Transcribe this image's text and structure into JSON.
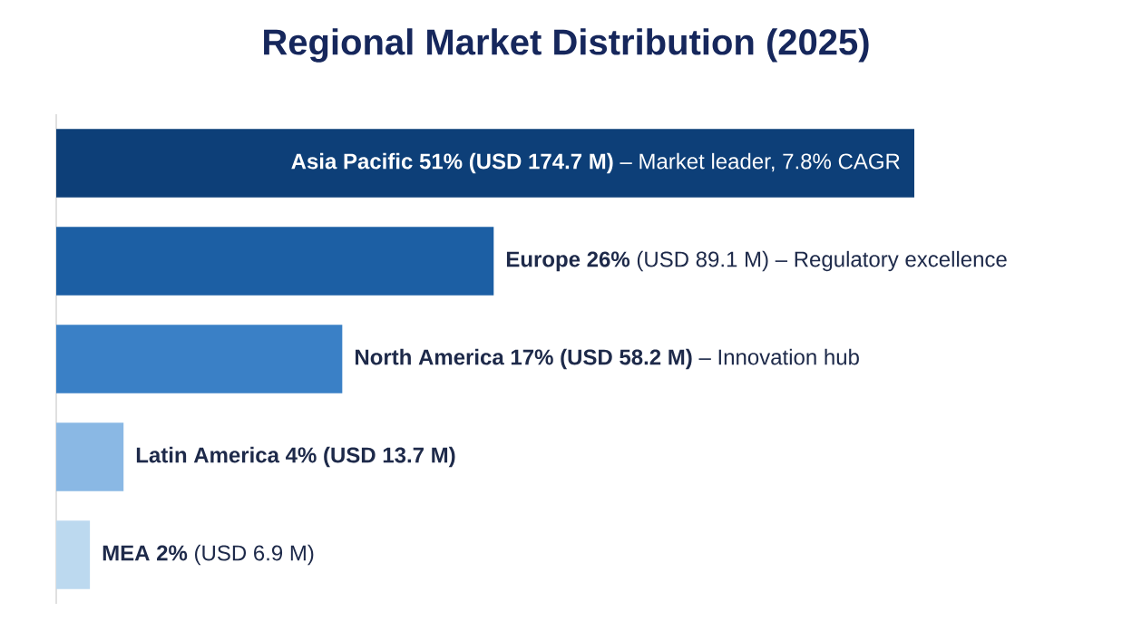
{
  "chart_data": {
    "type": "bar",
    "title": "Regional Market Distribution (2025)",
    "categories": [
      null,
      null,
      null,
      null,
      null
    ],
    "values": [
      51,
      26,
      17,
      4,
      2
    ],
    "colors": [
      "#0d3f78",
      "#1c5fa4",
      "#3a80c6",
      "#8ab8e4",
      "#bcd9ef"
    ],
    "value_labels": [
      "**Asia Pacific 51% (USD 174.7 M)** – Market leader, 7.8% CAGR",
      "**Europe 26%** (USD 89.1 M) – Regulatory excellence",
      "**North America 17% (USD 58.2 M)** – Innovation hub",
      "**Latin America 4% (USD 13.7 M)**",
      "**MEA 2%** (USD 6.9 M)"
    ],
    "orientation": "horizontal"
  }
}
